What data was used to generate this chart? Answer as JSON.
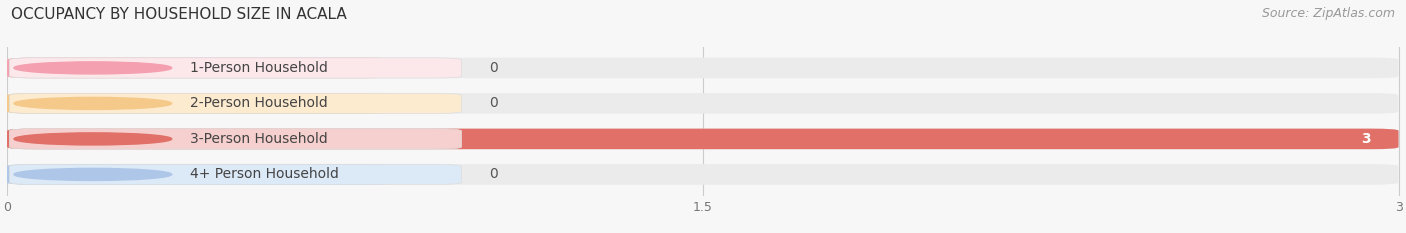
{
  "title": "OCCUPANCY BY HOUSEHOLD SIZE IN ACALA",
  "source": "Source: ZipAtlas.com",
  "categories": [
    "1-Person Household",
    "2-Person Household",
    "3-Person Household",
    "4+ Person Household"
  ],
  "values": [
    0,
    0,
    3,
    0
  ],
  "bar_colors": [
    "#f4a0b0",
    "#f5c98a",
    "#e07068",
    "#aec6e8"
  ],
  "label_bg_colors": [
    "#fce8ea",
    "#fdebd0",
    "#f5d0ce",
    "#dce9f7"
  ],
  "circle_colors": [
    "#f4a0b0",
    "#f5c98a",
    "#e07068",
    "#aec6e8"
  ],
  "xlim": [
    0,
    3
  ],
  "xticks": [
    0,
    1.5,
    3
  ],
  "background_color": "#f7f7f7",
  "bar_background_color": "#ebebeb",
  "title_fontsize": 11,
  "source_fontsize": 9,
  "label_fontsize": 10,
  "value_fontsize": 10
}
